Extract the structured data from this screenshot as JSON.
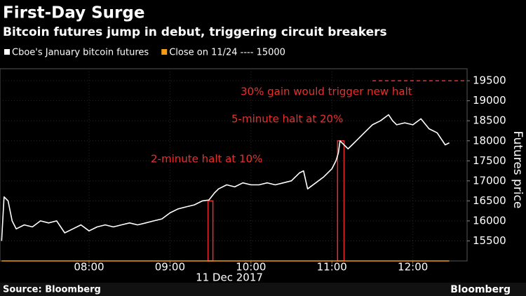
{
  "chart_data": {
    "type": "line",
    "title": "First-Day Surge",
    "subtitle": "Bitcoin futures jump in debut, triggering circuit breakers",
    "x_label": "11 Dec 2017",
    "y_label": "Futures price",
    "source": "Source: Bloomberg",
    "brand": "Bloomberg",
    "x": [
      6.92,
      6.95,
      7.0,
      7.05,
      7.1,
      7.2,
      7.3,
      7.4,
      7.5,
      7.6,
      7.7,
      7.8,
      7.9,
      8.0,
      8.1,
      8.2,
      8.3,
      8.4,
      8.5,
      8.6,
      8.7,
      8.8,
      8.9,
      9.0,
      9.1,
      9.2,
      9.3,
      9.4,
      9.48,
      9.55,
      9.6,
      9.7,
      9.8,
      9.9,
      10.0,
      10.1,
      10.2,
      10.3,
      10.4,
      10.5,
      10.6,
      10.65,
      10.7,
      10.8,
      10.9,
      11.0,
      11.05,
      11.08,
      11.1,
      11.2,
      11.25,
      11.3,
      11.4,
      11.5,
      11.6,
      11.7,
      11.75,
      11.8,
      11.9,
      12.0,
      12.1,
      12.2,
      12.3,
      12.4,
      12.45
    ],
    "series": [
      {
        "name": "Cboe's January bitcoin futures",
        "color": "#ffffff",
        "values": [
          15500,
          16600,
          16500,
          16000,
          15800,
          15900,
          15850,
          16000,
          15950,
          16000,
          15700,
          15800,
          15900,
          15750,
          15850,
          15900,
          15850,
          15900,
          15950,
          15900,
          15950,
          16000,
          16050,
          16200,
          16300,
          16350,
          16400,
          16500,
          16520,
          16700,
          16800,
          16900,
          16850,
          16950,
          16900,
          16900,
          16950,
          16900,
          16950,
          17000,
          17200,
          17250,
          16800,
          16950,
          17100,
          17300,
          17500,
          17700,
          18000,
          17800,
          17900,
          18000,
          18200,
          18400,
          18500,
          18650,
          18500,
          18400,
          18450,
          18400,
          18550,
          18300,
          18200,
          17900,
          17950
        ]
      },
      {
        "name": "Close on 11/24 ---- 15000",
        "color": "#f39c12",
        "values": [
          15000,
          15000,
          15000,
          15000,
          15000,
          15000,
          15000,
          15000,
          15000,
          15000,
          15000,
          15000,
          15000,
          15000,
          15000,
          15000,
          15000,
          15000,
          15000,
          15000,
          15000,
          15000,
          15000,
          15000,
          15000,
          15000,
          15000,
          15000,
          15000,
          15000,
          15000,
          15000,
          15000,
          15000,
          15000,
          15000,
          15000,
          15000,
          15000,
          15000,
          15000,
          15000,
          15000,
          15000,
          15000,
          15000,
          15000,
          15000,
          15000,
          15000,
          15000,
          15000,
          15000,
          15000,
          15000,
          15000,
          15000,
          15000,
          15000,
          15000,
          15000,
          15000,
          15000,
          15000,
          15000
        ]
      }
    ],
    "halts": [
      {
        "x": [
          9.47,
          9.53
        ],
        "value": 16500,
        "label": "2-minute halt at 10%"
      },
      {
        "x": [
          11.07,
          11.15
        ],
        "value": 18000,
        "label": "5-minute halt at 20%"
      }
    ],
    "threshold": {
      "value": 19500,
      "x": [
        11.5,
        12.67
      ],
      "label": "30% gain would trigger new halt"
    },
    "annotation_color": "#e8302f",
    "xlim": [
      6.9,
      12.67
    ],
    "ylim": [
      15000,
      19800
    ],
    "xticks": [
      {
        "value": 8,
        "label": "08:00"
      },
      {
        "value": 9,
        "label": "09:00"
      },
      {
        "value": 10,
        "label": "10:00"
      },
      {
        "value": 11,
        "label": "11:00"
      },
      {
        "value": 12,
        "label": "12:00"
      }
    ],
    "yticks": [
      15500,
      16000,
      16500,
      17000,
      17500,
      18000,
      18500,
      19000,
      19500
    ],
    "grid": true
  }
}
